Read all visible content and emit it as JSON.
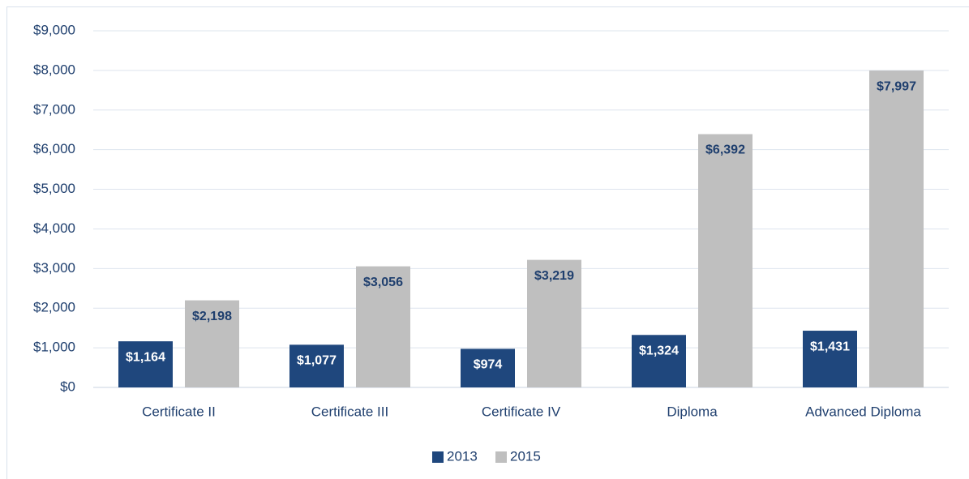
{
  "chart_data": {
    "type": "bar",
    "categories": [
      "Certificate II",
      "Certificate III",
      "Certificate IV",
      "Diploma",
      "Advanced Diploma"
    ],
    "series": [
      {
        "name": "2013",
        "color": "#1f477d",
        "values": [
          1164,
          1077,
          974,
          1324,
          1431
        ],
        "value_labels": [
          "$1,164",
          "$1,077",
          "$974",
          "$1,324",
          "$1,431"
        ],
        "label_color": "#ffffff"
      },
      {
        "name": "2015",
        "color": "#bfbfbf",
        "values": [
          2198,
          3056,
          3219,
          6392,
          7997
        ],
        "value_labels": [
          "$2,198",
          "$3,056",
          "$3,219",
          "$6,392",
          "$7,997"
        ],
        "label_color": "#1f3f6e"
      }
    ],
    "ylim": [
      0,
      9000
    ],
    "yticks": [
      {
        "value": 0,
        "label": "$0"
      },
      {
        "value": 1000,
        "label": "$1,000"
      },
      {
        "value": 2000,
        "label": "$2,000"
      },
      {
        "value": 3000,
        "label": "$3,000"
      },
      {
        "value": 4000,
        "label": "$4,000"
      },
      {
        "value": 5000,
        "label": "$5,000"
      },
      {
        "value": 6000,
        "label": "$6,000"
      },
      {
        "value": 7000,
        "label": "$7,000"
      },
      {
        "value": 8000,
        "label": "$8,000"
      },
      {
        "value": 9000,
        "label": "$9,000"
      }
    ],
    "grid": true,
    "legend": "bottom"
  }
}
